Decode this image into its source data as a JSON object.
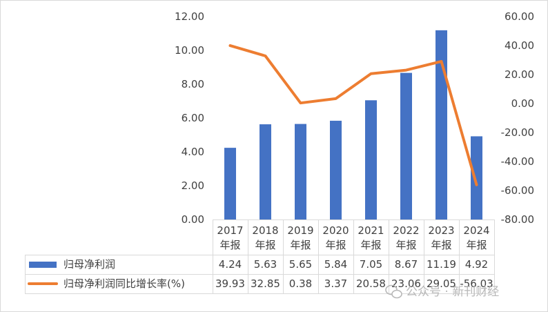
{
  "chart_data": {
    "type": "bar",
    "categories": [
      [
        "2017",
        "年报"
      ],
      [
        "2018",
        "年报"
      ],
      [
        "2019",
        "年报"
      ],
      [
        "2020",
        "年报"
      ],
      [
        "2021",
        "年报"
      ],
      [
        "2022",
        "年报"
      ],
      [
        "2023",
        "年报"
      ],
      [
        "2024",
        "年报"
      ]
    ],
    "series": [
      {
        "name": "归母净利润",
        "type": "bar",
        "axis": "left",
        "color": "#4472C4",
        "values": [
          4.24,
          5.63,
          5.65,
          5.84,
          7.05,
          8.67,
          11.19,
          4.92
        ],
        "labels": [
          "4.24",
          "5.63",
          "5.65",
          "5.84",
          "7.05",
          "8.67",
          "11.19",
          "4.92"
        ]
      },
      {
        "name": "归母净利润同比增长率(%)",
        "type": "line",
        "axis": "right",
        "color": "#ED7D31",
        "values": [
          39.93,
          32.85,
          0.38,
          3.37,
          20.58,
          23.06,
          29.05,
          -56.03
        ],
        "labels": [
          "39.93",
          "32.85",
          "0.38",
          "3.37",
          "20.58",
          "23.06",
          "29.05",
          "-56.03"
        ]
      }
    ],
    "y_left": {
      "min": 0,
      "max": 12,
      "ticks": [
        "0.00",
        "2.00",
        "4.00",
        "6.00",
        "8.00",
        "10.00",
        "12.00"
      ]
    },
    "y_right": {
      "min": -80,
      "max": 60,
      "ticks": [
        "-80.00",
        "-60.00",
        "-40.00",
        "-20.00",
        "0.00",
        "20.00",
        "40.00",
        "60.00"
      ]
    },
    "grid": false,
    "legend": "data-table-bottom"
  },
  "watermark": "公众号 · 新刊财经"
}
